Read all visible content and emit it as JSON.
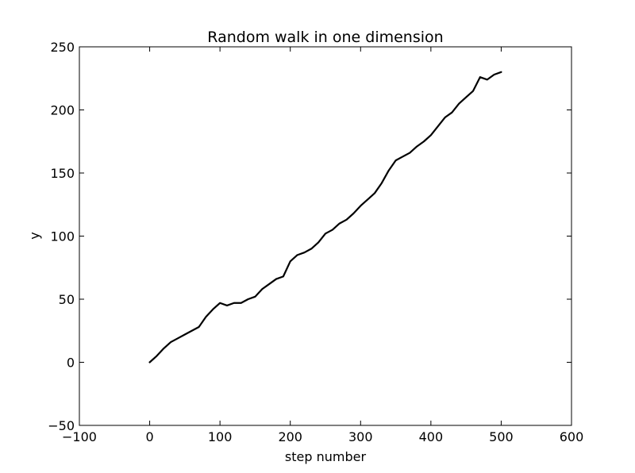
{
  "chart_data": {
    "type": "line",
    "title": "Random walk in one dimension",
    "xlabel": "step number",
    "ylabel": "y",
    "xlim": [
      -100,
      600
    ],
    "ylim": [
      -50,
      250
    ],
    "xticks": [
      -100,
      0,
      100,
      200,
      300,
      400,
      500,
      600
    ],
    "yticks": [
      -50,
      0,
      50,
      100,
      150,
      200,
      250
    ],
    "xtick_labels": [
      "−100",
      "0",
      "100",
      "200",
      "300",
      "400",
      "500",
      "600"
    ],
    "ytick_labels": [
      "−50",
      "0",
      "50",
      "100",
      "150",
      "200",
      "250"
    ],
    "grid": false,
    "line_color": "#000000",
    "series": [
      {
        "x": [
          0,
          10,
          20,
          30,
          40,
          50,
          60,
          70,
          80,
          90,
          100,
          110,
          120,
          130,
          140,
          150,
          160,
          170,
          180,
          190,
          200,
          210,
          220,
          230,
          240,
          250,
          260,
          270,
          280,
          290,
          300,
          310,
          320,
          330,
          340,
          350,
          360,
          370,
          380,
          390,
          400,
          410,
          420,
          430,
          440,
          450,
          460,
          470,
          480,
          490,
          500
        ],
        "y": [
          0,
          5,
          11,
          16,
          19,
          22,
          25,
          28,
          36,
          42,
          47,
          45,
          47,
          47,
          50,
          52,
          58,
          62,
          66,
          68,
          80,
          85,
          87,
          90,
          95,
          102,
          105,
          110,
          113,
          118,
          124,
          129,
          134,
          142,
          152,
          160,
          163,
          166,
          171,
          175,
          180,
          187,
          194,
          198,
          205,
          210,
          215,
          226,
          224,
          228,
          230
        ]
      }
    ]
  }
}
